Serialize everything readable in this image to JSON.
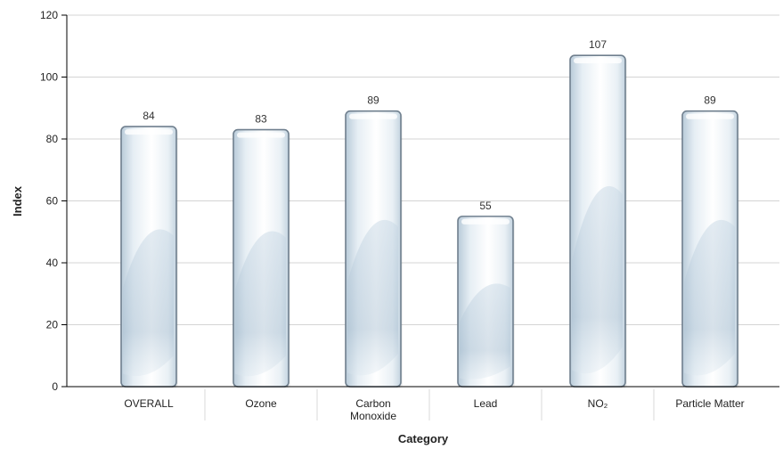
{
  "chart_data": {
    "type": "bar",
    "categories": [
      "OVERALL",
      "Ozone",
      "Carbon\nMonoxide",
      "Lead",
      "NO₂",
      "Particle Matter"
    ],
    "values": [
      84,
      83,
      89,
      55,
      107,
      89
    ],
    "title": "",
    "xlabel": "Category",
    "ylabel": "Index",
    "ylim": [
      0,
      120
    ],
    "yticks": [
      0,
      20,
      40,
      60,
      80,
      100,
      120
    ],
    "grid": true,
    "legend": "none",
    "colors": {
      "bar_light": "#ffffff",
      "bar_mid": "#dde8f0",
      "bar_dark": "#aec3d4",
      "bar_outline": "#6f7f8e",
      "gridline": "#d4d4d4",
      "axis": "#000000"
    }
  }
}
